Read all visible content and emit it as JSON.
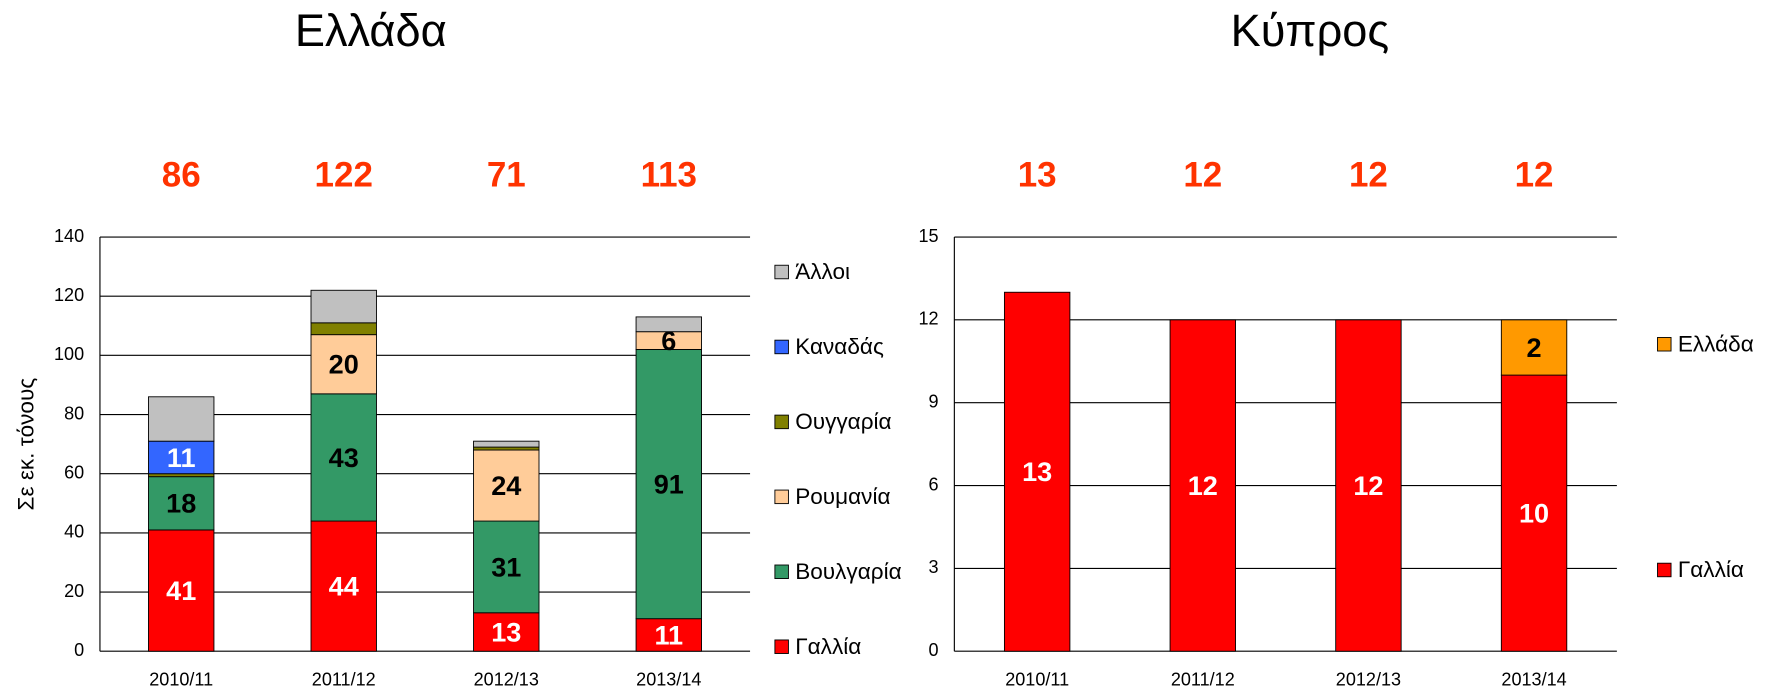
{
  "chart_data": [
    {
      "type": "stacked_bar",
      "title": "Ελλάδα",
      "y_label": "Σε εκ. τόνους",
      "categories": [
        "2010/11",
        "2011/12",
        "2012/13",
        "2013/14"
      ],
      "totals": [
        86,
        122,
        71,
        113
      ],
      "ylim": [
        0,
        140
      ],
      "yticks": [
        0,
        20,
        40,
        60,
        80,
        100,
        120,
        140
      ],
      "grid": true,
      "series": [
        {
          "name": "Γαλλία",
          "color": "#ff0000",
          "label_color": "#ffffff",
          "values": [
            41,
            44,
            13,
            11
          ],
          "value_labels": [
            41,
            44,
            13,
            11
          ]
        },
        {
          "name": "Βουλγαρία",
          "color": "#339966",
          "label_color": "#000000",
          "values": [
            18,
            43,
            31,
            91
          ],
          "value_labels": [
            18,
            43,
            31,
            91
          ]
        },
        {
          "name": "Ρουμανία",
          "color": "#ffcc99",
          "label_color": "#000000",
          "values": [
            0,
            20,
            24,
            6
          ],
          "value_labels": [
            null,
            20,
            24,
            6
          ]
        },
        {
          "name": "Ουγγαρία",
          "color": "#808000",
          "label_color": "#000000",
          "values": [
            1,
            4,
            1,
            0
          ],
          "value_labels": [
            null,
            null,
            null,
            null
          ]
        },
        {
          "name": "Καναδάς",
          "color": "#3366ff",
          "label_color": "#ffffff",
          "values": [
            11,
            0,
            0,
            0
          ],
          "value_labels": [
            11,
            null,
            null,
            null
          ]
        },
        {
          "name": "Άλλοι",
          "color": "#c0c0c0",
          "label_color": "#000000",
          "values": [
            15,
            11,
            2,
            5
          ],
          "value_labels": [
            null,
            null,
            null,
            null
          ]
        }
      ]
    },
    {
      "type": "stacked_bar",
      "title": "Κύπρος",
      "categories": [
        "2010/11",
        "2011/12",
        "2012/13",
        "2013/14"
      ],
      "totals": [
        13,
        12,
        12,
        12
      ],
      "ylim": [
        0,
        15
      ],
      "yticks": [
        0,
        3,
        6,
        9,
        12,
        15
      ],
      "grid": true,
      "series": [
        {
          "name": "Γαλλία",
          "color": "#ff0000",
          "label_color": "#ffffff",
          "values": [
            13,
            12,
            12,
            10
          ],
          "value_labels": [
            13,
            12,
            12,
            10
          ]
        },
        {
          "name": "Ελλάδα",
          "color": "#ff9900",
          "label_color": "#000000",
          "values": [
            0,
            0,
            0,
            2
          ],
          "value_labels": [
            null,
            null,
            null,
            2
          ]
        }
      ]
    }
  ]
}
